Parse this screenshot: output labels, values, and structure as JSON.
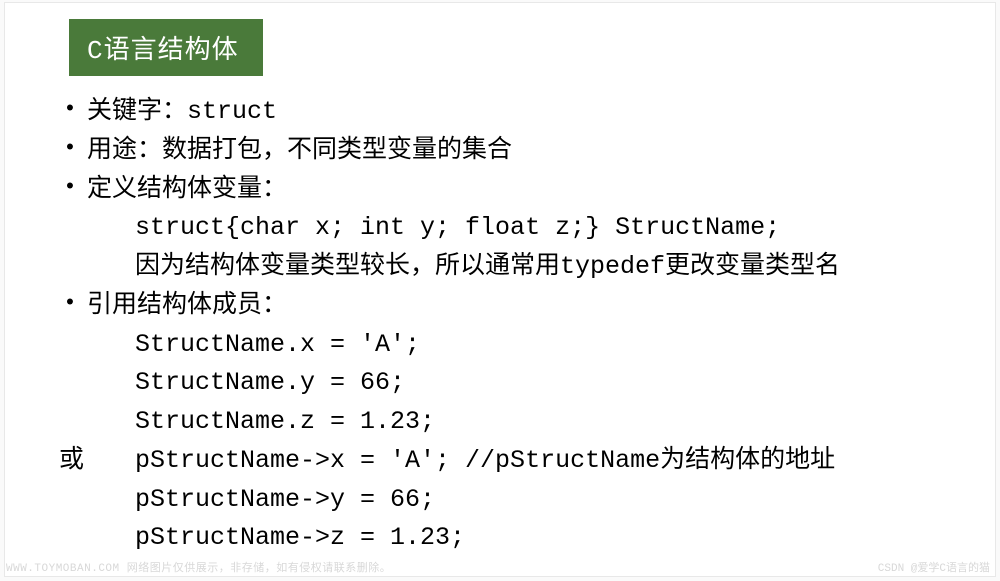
{
  "title": "C语言结构体",
  "bullets": {
    "b1": "关键字：struct",
    "b2": "用途：数据打包，不同类型变量的集合",
    "b3": "定义结构体变量：",
    "b3_line1": "struct{char x; int y; float z;} StructName;",
    "b3_line2": "因为结构体变量类型较长，所以通常用typedef更改变量类型名",
    "b4": "引用结构体成员：",
    "b4_line1": "StructName.x = 'A';",
    "b4_line2": "StructName.y = 66;",
    "b4_line3": "StructName.z = 1.23;",
    "or_label": "或",
    "b4_line4": "pStructName->x = 'A';   //pStructName为结构体的地址",
    "b4_line5": "pStructName->y = 66;",
    "b4_line6": "pStructName->z = 1.23;"
  },
  "watermark_left": "WWW.TOYMOBAN.COM  网络图片仅供展示，非存储，如有侵权请联系删除。",
  "watermark_right": "CSDN @爱学C语言的猫",
  "colors": {
    "title_bg": "#4a7a3a",
    "title_fg": "#ffffff",
    "text": "#000000",
    "page_bg": "#fafafa",
    "slide_bg": "#ffffff",
    "watermark": "#d8d8d8"
  }
}
